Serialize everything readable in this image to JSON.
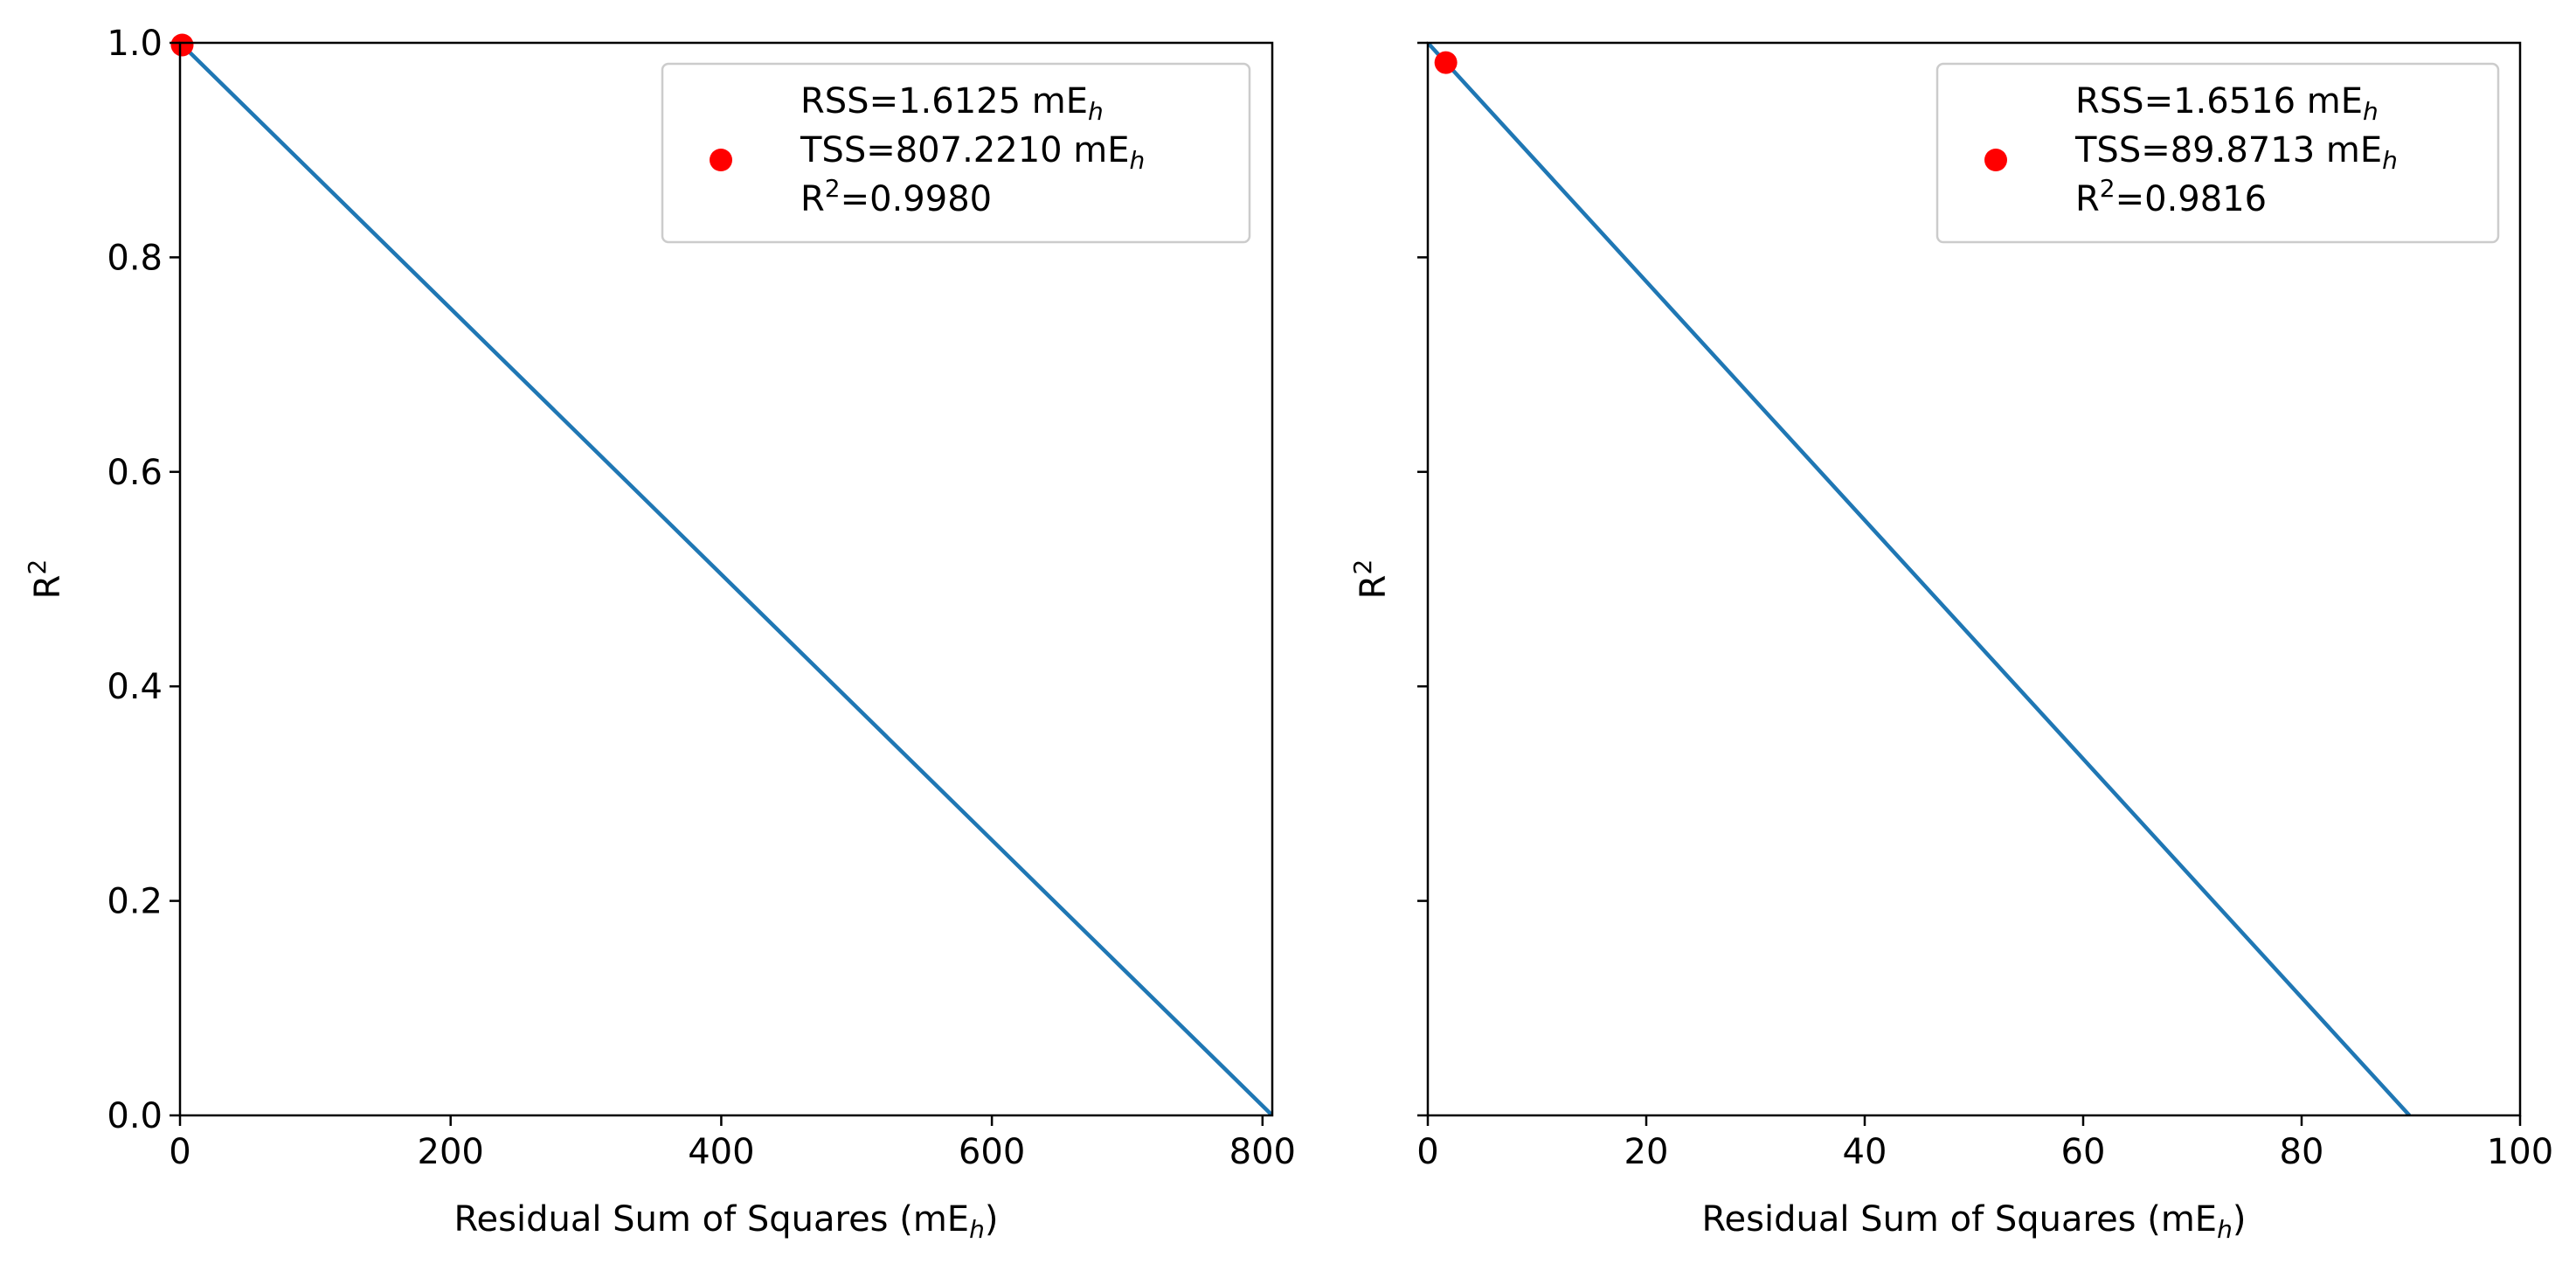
{
  "chart_data": [
    {
      "type": "line",
      "xlabel": "Residual Sum of Squares (mE",
      "xlabel_sub": "h",
      "xlabel_tail": ")",
      "ylabel": "R",
      "ylabel_sup": "2",
      "xlim": [
        0,
        807.221
      ],
      "ylim": [
        0,
        1.0
      ],
      "xticks": [
        0,
        200,
        400,
        600,
        800
      ],
      "xticklabels": [
        "0",
        "200",
        "400",
        "600",
        "800"
      ],
      "yticks": [
        0.0,
        0.2,
        0.4,
        0.6,
        0.8,
        1.0
      ],
      "yticklabels": [
        "0.0",
        "0.2",
        "0.4",
        "0.6",
        "0.8",
        "1.0"
      ],
      "show_ytick_labels": true,
      "grid": false,
      "series": [
        {
          "kind": "line",
          "color": "#1f77b4",
          "x": [
            0,
            807.221
          ],
          "y": [
            1.0,
            0.0
          ]
        },
        {
          "kind": "scatter",
          "color": "#ff0000",
          "x": [
            1.6125
          ],
          "y": [
            0.998
          ]
        }
      ],
      "legend": {
        "position": "top-right",
        "lines": [
          {
            "text": "RSS=1.6125 mE",
            "sub": "h"
          },
          {
            "text": "TSS=807.2210 mE",
            "sub": "h"
          },
          {
            "pre": "R",
            "sup": "2",
            "text": "=0.9980"
          }
        ]
      }
    },
    {
      "type": "line",
      "xlabel": "Residual Sum of Squares (mE",
      "xlabel_sub": "h",
      "xlabel_tail": ")",
      "ylabel": "R",
      "ylabel_sup": "2",
      "xlim": [
        0,
        100
      ],
      "ylim": [
        0,
        1.0
      ],
      "xticks": [
        0,
        20,
        40,
        60,
        80,
        100
      ],
      "xticklabels": [
        "0",
        "20",
        "40",
        "60",
        "80",
        "100"
      ],
      "yticks": [
        0.0,
        0.2,
        0.4,
        0.6,
        0.8,
        1.0
      ],
      "yticklabels": [],
      "show_ytick_labels": false,
      "grid": false,
      "series": [
        {
          "kind": "line",
          "color": "#1f77b4",
          "x": [
            0,
            89.8713
          ],
          "y": [
            1.0,
            0.0
          ]
        },
        {
          "kind": "scatter",
          "color": "#ff0000",
          "x": [
            1.6516
          ],
          "y": [
            0.9816
          ]
        }
      ],
      "legend": {
        "position": "top-right",
        "lines": [
          {
            "text": "RSS=1.6516 mE",
            "sub": "h"
          },
          {
            "text": "TSS=89.8713 mE",
            "sub": "h"
          },
          {
            "pre": "R",
            "sup": "2",
            "text": "=0.9816"
          }
        ]
      }
    }
  ]
}
